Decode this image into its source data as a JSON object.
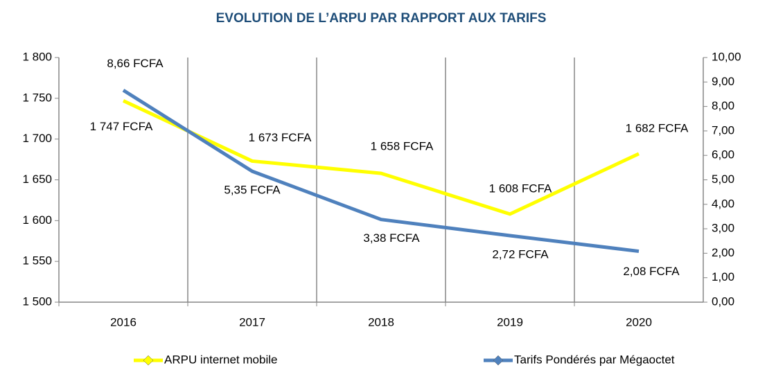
{
  "chart_data": {
    "type": "line",
    "title": "EVOLUTION DE L’ARPU PAR RAPPORT AUX TARIFS",
    "categories": [
      "2016",
      "2017",
      "2018",
      "2019",
      "2020"
    ],
    "series": [
      {
        "name": "ARPU internet mobile",
        "color": "#ffff00",
        "values": [
          1747,
          1673,
          1658,
          1608,
          1682
        ],
        "value_labels": [
          "1 747 FCFA",
          "1 673 FCFA",
          "1 658 FCFA",
          "1 608 FCFA",
          "1 682 FCFA"
        ]
      },
      {
        "name": "Tarifs Pondérés par Mégaoctet",
        "color": "#4f81bd",
        "axis": "y2",
        "values": [
          8.66,
          5.35,
          3.38,
          2.72,
          2.08
        ],
        "value_labels": [
          "8,66 FCFA",
          "5,35 FCFA",
          "3,38 FCFA",
          "2,72 FCFA",
          "2,08 FCFA"
        ]
      }
    ],
    "ylim": [
      1500,
      1800
    ],
    "yticks": [
      {
        "value": 1500,
        "label": "1 500"
      },
      {
        "value": 1550,
        "label": "1 550"
      },
      {
        "value": 1600,
        "label": "1 600"
      },
      {
        "value": 1650,
        "label": "1 650"
      },
      {
        "value": 1700,
        "label": "1 700"
      },
      {
        "value": 1750,
        "label": "1 750"
      },
      {
        "value": 1800,
        "label": "1 800"
      }
    ],
    "y2lim": [
      0,
      10
    ],
    "y2ticks": [
      {
        "value": 0,
        "label": "0,00"
      },
      {
        "value": 1,
        "label": "1,00"
      },
      {
        "value": 2,
        "label": "2,00"
      },
      {
        "value": 3,
        "label": "3,00"
      },
      {
        "value": 4,
        "label": "4,00"
      },
      {
        "value": 5,
        "label": "5,00"
      },
      {
        "value": 6,
        "label": "6,00"
      },
      {
        "value": 7,
        "label": "7,00"
      },
      {
        "value": 8,
        "label": "8,00"
      },
      {
        "value": 9,
        "label": "9,00"
      },
      {
        "value": 10,
        "label": "10,00"
      }
    ],
    "grid": "x",
    "legend": "bottom"
  }
}
